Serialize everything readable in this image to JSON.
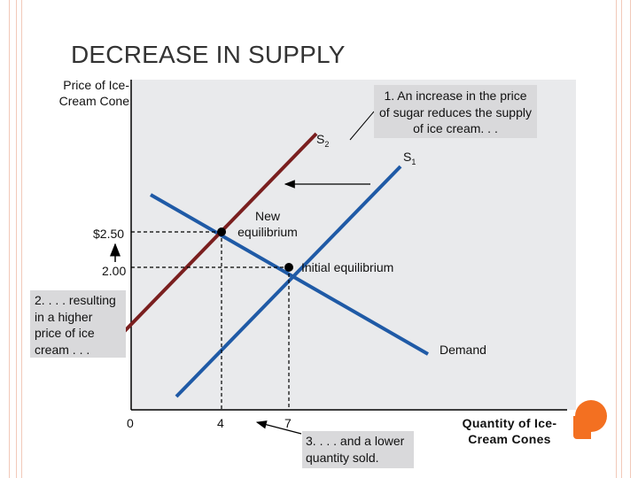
{
  "title": "DECREASE IN SUPPLY",
  "chart_data": {
    "type": "supply-demand",
    "ylabel": "Price of Ice-Cream Cone",
    "xlabel": "Quantity of Ice-Cream Cones",
    "x_ticks": [
      "0",
      "4",
      "7"
    ],
    "y_ticks": [
      "$2.50",
      "2.00"
    ],
    "curves": [
      {
        "name": "S1",
        "kind": "supply",
        "color": "#1f5aa6"
      },
      {
        "name": "S2",
        "kind": "supply",
        "color": "#7a1f1f"
      },
      {
        "name": "Demand",
        "kind": "demand",
        "color": "#1f5aa6"
      }
    ],
    "points": [
      {
        "name": "New equilibrium",
        "quantity": 4,
        "price": 2.5
      },
      {
        "name": "Initial equilibrium",
        "quantity": 7,
        "price": 2.0
      }
    ]
  },
  "labels": {
    "s2": "S",
    "s2_sub": "2",
    "s1": "S",
    "s1_sub": "1",
    "demand": "Demand",
    "new_eq": "New equilibrium",
    "init_eq": "Initial equilibrium"
  },
  "annotations": {
    "step1": "1. An increase in the price of sugar reduces the supply of ice cream. . .",
    "step2": "2. . . . resulting in a higher price of ice cream . . .",
    "step3": "3. . . . and a lower quantity sold."
  },
  "colors": {
    "blue": "#1f5aa6",
    "maroon": "#7a1f1f",
    "orange": "#f37021"
  }
}
